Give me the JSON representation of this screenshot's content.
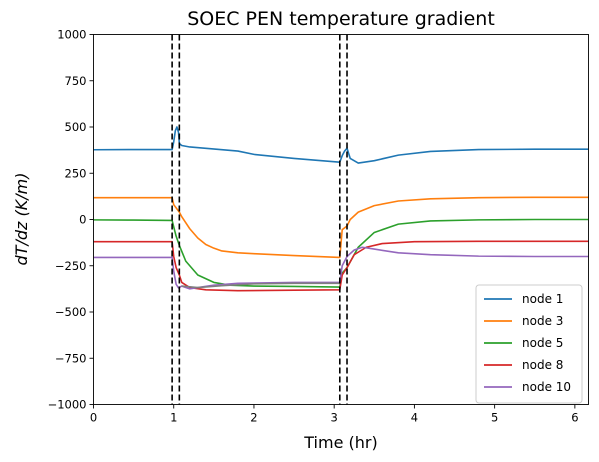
{
  "chart_data": {
    "type": "line",
    "title": "SOEC PEN temperature gradient",
    "xlabel": "Time (hr)",
    "ylabel": "dT/dz (K/m)",
    "xlim": [
      0,
      6.17
    ],
    "ylim": [
      -1000,
      1000
    ],
    "xticks": [
      0,
      1,
      2,
      3,
      4,
      5,
      6
    ],
    "yticks": [
      -1000,
      -750,
      -500,
      -250,
      0,
      250,
      500,
      750,
      1000
    ],
    "ytick_labels": [
      "−1000",
      "−750",
      "−500",
      "−250",
      "0",
      "250",
      "500",
      "750",
      "1000"
    ],
    "grid": false,
    "legend_position": "lower-right",
    "vlines": [
      0.98,
      1.07,
      3.07,
      3.16
    ],
    "series": [
      {
        "name": "node 1",
        "color": "#1f77b4",
        "x": [
          0,
          0.5,
          0.98,
          1.0,
          1.02,
          1.04,
          1.06,
          1.07,
          1.1,
          1.2,
          1.4,
          1.8,
          2.0,
          2.5,
          3.07,
          3.1,
          3.13,
          3.16,
          3.2,
          3.3,
          3.5,
          3.8,
          4.2,
          4.8,
          5.5,
          6.17
        ],
        "y": [
          377,
          378,
          378,
          420,
          480,
          500,
          470,
          410,
          400,
          392,
          385,
          370,
          352,
          330,
          310,
          345,
          370,
          385,
          330,
          305,
          318,
          348,
          368,
          378,
          380,
          380
        ]
      },
      {
        "name": "node 3",
        "color": "#ff7f0e",
        "x": [
          0,
          0.5,
          0.98,
          1.0,
          1.07,
          1.1,
          1.2,
          1.3,
          1.4,
          1.5,
          1.6,
          1.8,
          2.0,
          2.5,
          3.07,
          3.1,
          3.16,
          3.2,
          3.3,
          3.5,
          3.8,
          4.2,
          4.8,
          5.5,
          6.17
        ],
        "y": [
          118,
          118,
          118,
          80,
          40,
          15,
          -50,
          -100,
          -135,
          -155,
          -170,
          -180,
          -185,
          -195,
          -205,
          -55,
          -35,
          0,
          40,
          75,
          100,
          112,
          118,
          120,
          120
        ]
      },
      {
        "name": "node 5",
        "color": "#2ca02c",
        "x": [
          0,
          0.5,
          0.98,
          1.0,
          1.03,
          1.07,
          1.15,
          1.3,
          1.5,
          1.7,
          2.0,
          2.5,
          3.07,
          3.1,
          3.16,
          3.3,
          3.5,
          3.8,
          4.2,
          4.8,
          5.5,
          6.17
        ],
        "y": [
          -2,
          -3,
          -5,
          -40,
          -90,
          -140,
          -225,
          -300,
          -340,
          -355,
          -360,
          -362,
          -365,
          -290,
          -260,
          -150,
          -70,
          -25,
          -8,
          -2,
          0,
          0
        ]
      },
      {
        "name": "node 8",
        "color": "#d62728",
        "x": [
          0,
          0.5,
          0.98,
          1.0,
          1.03,
          1.07,
          1.1,
          1.2,
          1.4,
          1.8,
          2.5,
          3.07,
          3.1,
          3.16,
          3.25,
          3.4,
          3.6,
          4.0,
          4.8,
          5.5,
          6.17
        ],
        "y": [
          -120,
          -120,
          -120,
          -200,
          -260,
          -300,
          -340,
          -368,
          -380,
          -385,
          -382,
          -380,
          -300,
          -260,
          -190,
          -150,
          -130,
          -120,
          -118,
          -118,
          -118
        ]
      },
      {
        "name": "node 10",
        "color": "#9467bd",
        "x": [
          0,
          0.5,
          0.98,
          1.0,
          1.03,
          1.06,
          1.1,
          1.2,
          1.3,
          1.5,
          1.8,
          2.5,
          3.07,
          3.1,
          3.16,
          3.25,
          3.35,
          3.5,
          3.8,
          4.2,
          4.8,
          5.5,
          6.17
        ],
        "y": [
          -205,
          -205,
          -205,
          -280,
          -350,
          -370,
          -360,
          -375,
          -368,
          -355,
          -345,
          -340,
          -340,
          -250,
          -200,
          -165,
          -150,
          -160,
          -180,
          -190,
          -198,
          -200,
          -200
        ]
      },
      {
        "name": "",
        "color": "#7f7f7f",
        "x": [
          1.1,
          1.3,
          1.6,
          2.0,
          2.5,
          3.07
        ],
        "y": [
          -360,
          -368,
          -358,
          -348,
          -345,
          -345
        ]
      }
    ]
  }
}
